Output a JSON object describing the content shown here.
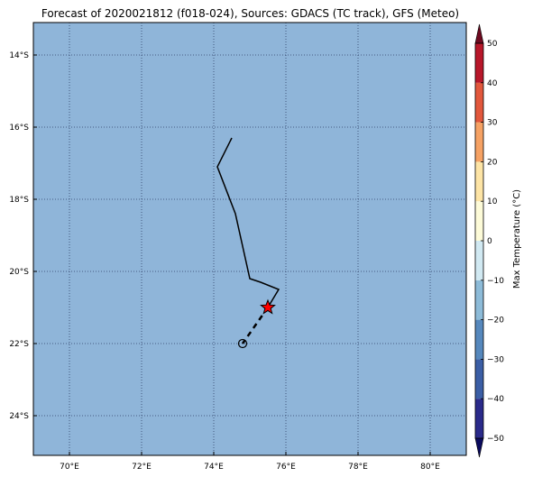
{
  "title": "Forecast of 2020021812 (f018-024), Sources: GDACS (TC track), GFS (Meteo)",
  "map": {
    "lon_range": [
      69,
      81
    ],
    "lat_range": [
      -25.1,
      -13.1
    ],
    "background_color": "#8fb5d9",
    "gridlines": "dotted",
    "x_ticks": [
      {
        "lon": 70,
        "label": "70°E"
      },
      {
        "lon": 72,
        "label": "72°E"
      },
      {
        "lon": 74,
        "label": "74°E"
      },
      {
        "lon": 76,
        "label": "76°E"
      },
      {
        "lon": 78,
        "label": "78°E"
      },
      {
        "lon": 80,
        "label": "80°E"
      }
    ],
    "y_ticks": [
      {
        "lat": -14,
        "label": "14°S"
      },
      {
        "lat": -16,
        "label": "16°S"
      },
      {
        "lat": -18,
        "label": "18°S"
      },
      {
        "lat": -20,
        "label": "20°S"
      },
      {
        "lat": -22,
        "label": "22°S"
      },
      {
        "lat": -24,
        "label": "24°S"
      }
    ],
    "track_past": [
      [
        74.5,
        -16.3
      ],
      [
        74.1,
        -17.1
      ],
      [
        74.6,
        -18.4
      ],
      [
        75.0,
        -20.2
      ],
      [
        75.3,
        -20.3
      ],
      [
        75.8,
        -20.5
      ],
      [
        75.5,
        -21.0
      ]
    ],
    "track_forecast": [
      [
        75.5,
        -21.0
      ],
      [
        74.8,
        -22.0
      ]
    ],
    "current_position": {
      "lon": 75.5,
      "lat": -21.0,
      "marker": "star-icon",
      "color": "#ff0000"
    },
    "forecast_position": {
      "lon": 74.8,
      "lat": -22.0,
      "marker": "circle-icon"
    }
  },
  "colorbar": {
    "label": "Max Temperature (°C)",
    "min": -55,
    "max": 55,
    "ticks": [
      {
        "value": 50,
        "label": "50"
      },
      {
        "value": 40,
        "label": "40"
      },
      {
        "value": 30,
        "label": "30"
      },
      {
        "value": 20,
        "label": "20"
      },
      {
        "value": 10,
        "label": "10"
      },
      {
        "value": 0,
        "label": "0"
      },
      {
        "value": -10,
        "label": "−10"
      },
      {
        "value": -20,
        "label": "−20"
      },
      {
        "value": -30,
        "label": "−30"
      },
      {
        "value": -40,
        "label": "−40"
      },
      {
        "value": -50,
        "label": "−50"
      }
    ],
    "bands": [
      {
        "from": -60,
        "to": -50,
        "color": "#0b0b5e"
      },
      {
        "from": -50,
        "to": -40,
        "color": "#2a2a8a"
      },
      {
        "from": -40,
        "to": -30,
        "color": "#3b5ea5"
      },
      {
        "from": -30,
        "to": -20,
        "color": "#5688bd"
      },
      {
        "from": -20,
        "to": -10,
        "color": "#8dbbd8"
      },
      {
        "from": -10,
        "to": 0,
        "color": "#d1e9f2"
      },
      {
        "from": 0,
        "to": 10,
        "color": "#fdfbd8"
      },
      {
        "from": 10,
        "to": 20,
        "color": "#fde4a5"
      },
      {
        "from": 20,
        "to": 30,
        "color": "#f6a264"
      },
      {
        "from": 30,
        "to": 40,
        "color": "#e2573c"
      },
      {
        "from": 40,
        "to": 50,
        "color": "#b8172a"
      },
      {
        "from": 50,
        "to": 60,
        "color": "#6e0a20"
      }
    ]
  }
}
